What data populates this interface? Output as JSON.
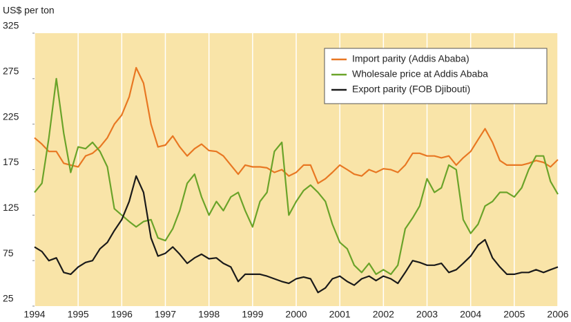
{
  "chart_data": {
    "type": "line",
    "y_label": "US$ per ton",
    "x": [
      1994,
      1994.17,
      1994.33,
      1994.5,
      1994.67,
      1994.83,
      1995,
      1995.17,
      1995.33,
      1995.5,
      1995.67,
      1995.83,
      1996,
      1996.17,
      1996.33,
      1996.5,
      1996.67,
      1996.83,
      1997,
      1997.17,
      1997.33,
      1997.5,
      1997.67,
      1997.83,
      1998,
      1998.17,
      1998.33,
      1998.5,
      1998.67,
      1998.83,
      1999,
      1999.17,
      1999.33,
      1999.5,
      1999.67,
      1999.83,
      2000,
      2000.17,
      2000.33,
      2000.5,
      2000.67,
      2000.83,
      2001,
      2001.17,
      2001.33,
      2001.5,
      2001.67,
      2001.83,
      2002,
      2002.17,
      2002.33,
      2002.5,
      2002.67,
      2002.83,
      2003,
      2003.17,
      2003.33,
      2003.5,
      2003.67,
      2003.83,
      2004,
      2004.17,
      2004.33,
      2004.5,
      2004.67,
      2004.83,
      2005,
      2005.17,
      2005.33,
      2005.5,
      2005.67,
      2005.83,
      2006
    ],
    "series": [
      {
        "name": "Import parity (Addis Ababa)",
        "color": "#e87722",
        "values": [
          210,
          203,
          195,
          195,
          182,
          180,
          178,
          190,
          193,
          200,
          210,
          225,
          235,
          255,
          287,
          270,
          225,
          200,
          202,
          212,
          200,
          190,
          198,
          203,
          196,
          195,
          190,
          180,
          170,
          180,
          178,
          178,
          177,
          172,
          175,
          168,
          172,
          180,
          180,
          160,
          165,
          172,
          180,
          175,
          170,
          168,
          175,
          172,
          176,
          175,
          172,
          180,
          193,
          193,
          190,
          190,
          188,
          190,
          180,
          188,
          195,
          208,
          220,
          205,
          185,
          180,
          180,
          180,
          182,
          185,
          183,
          178,
          186
        ]
      },
      {
        "name": "Wholesale price at Addis Ababa",
        "color": "#6aa329",
        "values": [
          150,
          160,
          210,
          275,
          215,
          172,
          200,
          198,
          205,
          195,
          178,
          132,
          125,
          118,
          112,
          118,
          120,
          100,
          97,
          110,
          130,
          160,
          170,
          145,
          125,
          140,
          130,
          145,
          150,
          130,
          112,
          140,
          150,
          195,
          205,
          125,
          140,
          152,
          158,
          150,
          140,
          115,
          95,
          88,
          70,
          62,
          72,
          60,
          65,
          60,
          70,
          110,
          122,
          135,
          165,
          150,
          155,
          180,
          175,
          120,
          105,
          115,
          135,
          140,
          150,
          150,
          145,
          155,
          175,
          190,
          190,
          162,
          148
        ]
      },
      {
        "name": "Export parity (FOB Djibouti)",
        "color": "#1a1a1a",
        "values": [
          90,
          85,
          75,
          78,
          62,
          60,
          68,
          73,
          75,
          88,
          95,
          108,
          120,
          140,
          168,
          150,
          100,
          80,
          83,
          90,
          82,
          72,
          78,
          82,
          77,
          78,
          72,
          68,
          52,
          60,
          60,
          60,
          58,
          55,
          52,
          50,
          55,
          57,
          55,
          40,
          45,
          55,
          58,
          52,
          48,
          55,
          58,
          53,
          58,
          55,
          50,
          62,
          75,
          73,
          70,
          70,
          72,
          62,
          65,
          72,
          80,
          92,
          98,
          78,
          68,
          60,
          60,
          62,
          62,
          65,
          62,
          65,
          68
        ]
      }
    ],
    "xlim": [
      1994,
      2006
    ],
    "xticks": [
      1994,
      1995,
      1996,
      1997,
      1998,
      1999,
      2000,
      2001,
      2002,
      2003,
      2004,
      2005,
      2006
    ],
    "ylim": [
      25,
      325
    ],
    "yticks": [
      25,
      75,
      125,
      175,
      225,
      275,
      325
    ],
    "grid": "x",
    "background": "#f9e4a8",
    "legend": "upper right"
  }
}
